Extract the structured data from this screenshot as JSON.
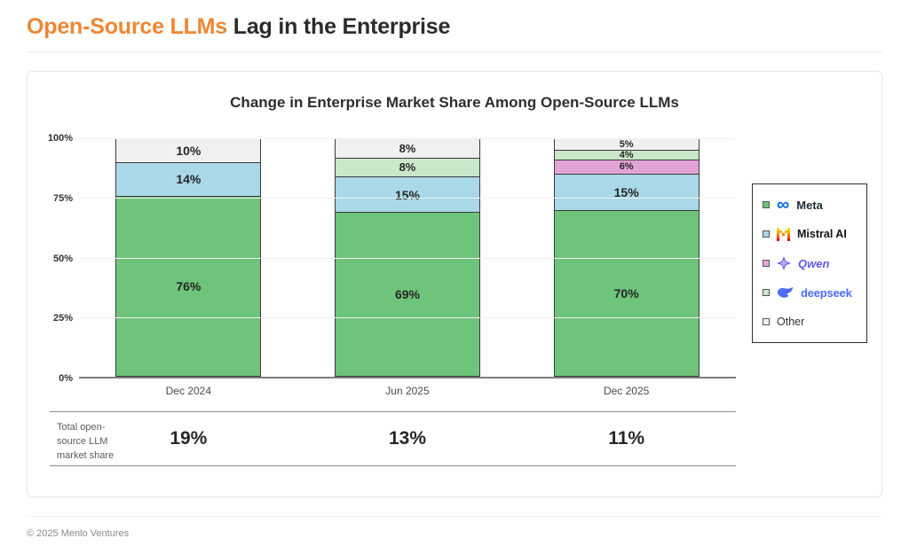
{
  "header": {
    "title_highlight": "Open-Source LLMs",
    "title_rest": "Lag in the Enterprise"
  },
  "chart_data": {
    "type": "bar",
    "stacked": true,
    "title": "Change in Enterprise Market Share Among Open-Source LLMs",
    "categories": [
      "Dec 2024",
      "Jun 2025",
      "Dec 2025"
    ],
    "series": [
      {
        "name": "Meta",
        "color": "#6EC47A",
        "values": [
          76,
          69,
          70
        ]
      },
      {
        "name": "Mistral AI",
        "color": "#A9D8E8",
        "values": [
          14,
          15,
          15
        ]
      },
      {
        "name": "Qwen",
        "color": "#E2A4D6",
        "values": [
          0,
          0,
          6
        ]
      },
      {
        "name": "deepseek",
        "color": "#C9E8CA",
        "values": [
          0,
          8,
          4
        ]
      },
      {
        "name": "Other",
        "color": "#F0F0F0",
        "values": [
          10,
          8,
          5
        ]
      }
    ],
    "y_axis": {
      "ticks": [
        "100%",
        "75%",
        "50%",
        "25%",
        "0%"
      ],
      "range": [
        0,
        100
      ],
      "grid": true
    },
    "legend": {
      "position": "right",
      "items": [
        "Meta",
        "Mistral AI",
        "Qwen",
        "deepseek",
        "Other"
      ]
    },
    "totals_row": {
      "label_lines": [
        "Total open-",
        "source LLM",
        "market share"
      ],
      "values": [
        "19%",
        "13%",
        "11%"
      ]
    },
    "accent_colors": {
      "title_orange": "#ED8733",
      "segment_border": "#3a3a3a"
    }
  },
  "footer": {
    "text": "© 2025 Menlo Ventures"
  }
}
